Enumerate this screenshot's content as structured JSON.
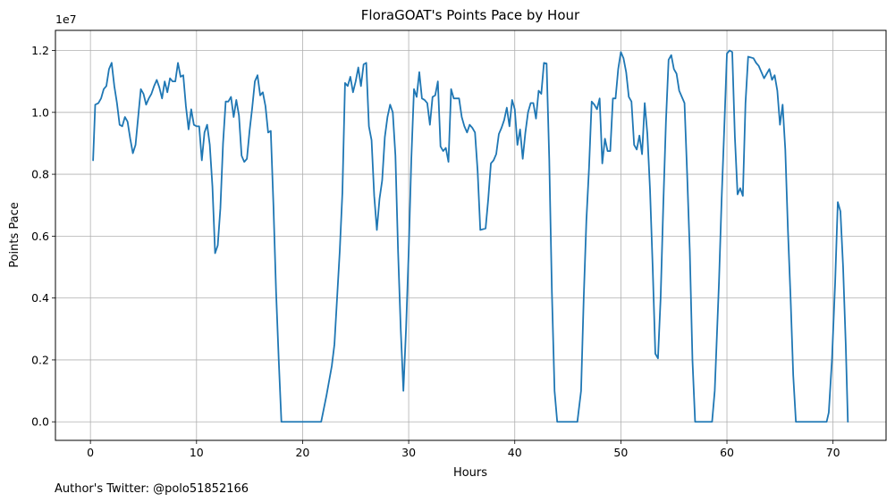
{
  "chart_data": {
    "type": "line",
    "title": "FloraGOAT's Points Pace by Hour",
    "xlabel": "Hours",
    "ylabel": "Points Pace",
    "offset_text": "1e7",
    "footer": "Author's Twitter: @polo51852166",
    "xlim": [
      -3.3,
      75.0
    ],
    "ylim": [
      -0.06,
      1.265
    ],
    "x_ticks": [
      0,
      10,
      20,
      30,
      40,
      50,
      60,
      70
    ],
    "y_ticks": [
      0.0,
      0.2,
      0.4,
      0.6,
      0.8,
      1.0,
      1.2
    ],
    "x_tick_labels": [
      "0",
      "10",
      "20",
      "30",
      "40",
      "50",
      "60",
      "70"
    ],
    "y_tick_labels": [
      "0.0",
      "0.2",
      "0.4",
      "0.6",
      "0.8",
      "1.0",
      "1.2"
    ],
    "grid": true,
    "series_color": "#1f77b4",
    "series": [
      {
        "points": [
          [
            0.25,
            0.845
          ],
          [
            0.45,
            1.025
          ],
          [
            0.75,
            1.03
          ],
          [
            1.0,
            1.045
          ],
          [
            1.25,
            1.075
          ],
          [
            1.5,
            1.085
          ],
          [
            1.75,
            1.14
          ],
          [
            2.0,
            1.16
          ],
          [
            2.25,
            1.085
          ],
          [
            2.5,
            1.03
          ],
          [
            2.75,
            0.96
          ],
          [
            3.0,
            0.955
          ],
          [
            3.25,
            0.985
          ],
          [
            3.5,
            0.97
          ],
          [
            3.75,
            0.915
          ],
          [
            4.0,
            0.868
          ],
          [
            4.25,
            0.895
          ],
          [
            4.5,
            0.985
          ],
          [
            4.75,
            1.075
          ],
          [
            5.0,
            1.06
          ],
          [
            5.25,
            1.025
          ],
          [
            5.5,
            1.045
          ],
          [
            5.75,
            1.06
          ],
          [
            6.0,
            1.085
          ],
          [
            6.25,
            1.105
          ],
          [
            6.5,
            1.08
          ],
          [
            6.75,
            1.045
          ],
          [
            7.0,
            1.1
          ],
          [
            7.25,
            1.065
          ],
          [
            7.5,
            1.11
          ],
          [
            7.75,
            1.1
          ],
          [
            8.0,
            1.1
          ],
          [
            8.25,
            1.16
          ],
          [
            8.5,
            1.115
          ],
          [
            8.75,
            1.12
          ],
          [
            9.0,
            1.02
          ],
          [
            9.25,
            0.945
          ],
          [
            9.5,
            1.01
          ],
          [
            9.75,
            0.96
          ],
          [
            10.0,
            0.955
          ],
          [
            10.25,
            0.955
          ],
          [
            10.5,
            0.845
          ],
          [
            10.75,
            0.935
          ],
          [
            11.0,
            0.96
          ],
          [
            11.25,
            0.895
          ],
          [
            11.5,
            0.76
          ],
          [
            11.75,
            0.545
          ],
          [
            12.0,
            0.57
          ],
          [
            12.25,
            0.69
          ],
          [
            12.5,
            0.9
          ],
          [
            12.75,
            1.035
          ],
          [
            13.0,
            1.035
          ],
          [
            13.25,
            1.05
          ],
          [
            13.5,
            0.985
          ],
          [
            13.75,
            1.04
          ],
          [
            14.0,
            0.99
          ],
          [
            14.25,
            0.86
          ],
          [
            14.5,
            0.84
          ],
          [
            14.75,
            0.85
          ],
          [
            15.0,
            0.94
          ],
          [
            15.25,
            1.015
          ],
          [
            15.5,
            1.1
          ],
          [
            15.75,
            1.12
          ],
          [
            16.0,
            1.055
          ],
          [
            16.25,
            1.065
          ],
          [
            16.5,
            1.02
          ],
          [
            16.75,
            0.935
          ],
          [
            17.0,
            0.94
          ],
          [
            17.25,
            0.7
          ],
          [
            17.5,
            0.42
          ],
          [
            17.75,
            0.2
          ],
          [
            18.0,
            0.0
          ],
          [
            19.0,
            0.0
          ],
          [
            20.0,
            0.0
          ],
          [
            21.0,
            0.0
          ],
          [
            21.75,
            0.0
          ],
          [
            22.25,
            0.085
          ],
          [
            22.75,
            0.18
          ],
          [
            23.0,
            0.25
          ],
          [
            23.5,
            0.55
          ],
          [
            23.75,
            0.74
          ],
          [
            24.0,
            1.095
          ],
          [
            24.25,
            1.085
          ],
          [
            24.5,
            1.115
          ],
          [
            24.75,
            1.065
          ],
          [
            25.0,
            1.1
          ],
          [
            25.25,
            1.145
          ],
          [
            25.5,
            1.085
          ],
          [
            25.75,
            1.155
          ],
          [
            26.0,
            1.16
          ],
          [
            26.25,
            0.955
          ],
          [
            26.5,
            0.91
          ],
          [
            26.75,
            0.73
          ],
          [
            27.0,
            0.62
          ],
          [
            27.25,
            0.72
          ],
          [
            27.5,
            0.78
          ],
          [
            27.75,
            0.92
          ],
          [
            28.0,
            0.985
          ],
          [
            28.25,
            1.025
          ],
          [
            28.5,
            1.0
          ],
          [
            28.75,
            0.86
          ],
          [
            29.0,
            0.55
          ],
          [
            29.25,
            0.3
          ],
          [
            29.5,
            0.1
          ],
          [
            29.75,
            0.3
          ],
          [
            30.0,
            0.55
          ],
          [
            30.25,
            0.85
          ],
          [
            30.5,
            1.075
          ],
          [
            30.75,
            1.05
          ],
          [
            31.0,
            1.13
          ],
          [
            31.25,
            1.045
          ],
          [
            31.5,
            1.04
          ],
          [
            31.75,
            1.03
          ],
          [
            32.0,
            0.96
          ],
          [
            32.25,
            1.05
          ],
          [
            32.5,
            1.055
          ],
          [
            32.75,
            1.1
          ],
          [
            33.0,
            0.89
          ],
          [
            33.25,
            0.875
          ],
          [
            33.5,
            0.885
          ],
          [
            33.75,
            0.84
          ],
          [
            34.0,
            1.075
          ],
          [
            34.25,
            1.045
          ],
          [
            34.5,
            1.045
          ],
          [
            34.75,
            1.045
          ],
          [
            35.0,
            0.985
          ],
          [
            35.25,
            0.955
          ],
          [
            35.5,
            0.935
          ],
          [
            35.75,
            0.96
          ],
          [
            36.0,
            0.95
          ],
          [
            36.25,
            0.935
          ],
          [
            36.5,
            0.81
          ],
          [
            36.75,
            0.62
          ],
          [
            37.25,
            0.625
          ],
          [
            37.5,
            0.72
          ],
          [
            37.75,
            0.835
          ],
          [
            38.0,
            0.845
          ],
          [
            38.25,
            0.865
          ],
          [
            38.5,
            0.93
          ],
          [
            38.75,
            0.95
          ],
          [
            39.0,
            0.975
          ],
          [
            39.25,
            1.015
          ],
          [
            39.5,
            0.955
          ],
          [
            39.75,
            1.04
          ],
          [
            40.0,
            1.01
          ],
          [
            40.25,
            0.895
          ],
          [
            40.5,
            0.945
          ],
          [
            40.75,
            0.85
          ],
          [
            41.0,
            0.935
          ],
          [
            41.25,
            1.0
          ],
          [
            41.5,
            1.03
          ],
          [
            41.75,
            1.03
          ],
          [
            42.0,
            0.98
          ],
          [
            42.25,
            1.07
          ],
          [
            42.5,
            1.06
          ],
          [
            42.75,
            1.16
          ],
          [
            43.0,
            1.158
          ],
          [
            43.25,
            0.85
          ],
          [
            43.5,
            0.42
          ],
          [
            43.75,
            0.1
          ],
          [
            44.0,
            0.0
          ],
          [
            45.0,
            0.0
          ],
          [
            45.9,
            0.0
          ],
          [
            46.25,
            0.1
          ],
          [
            46.5,
            0.4
          ],
          [
            46.75,
            0.65
          ],
          [
            47.0,
            0.82
          ],
          [
            47.25,
            1.035
          ],
          [
            47.5,
            1.025
          ],
          [
            47.75,
            1.01
          ],
          [
            48.0,
            1.045
          ],
          [
            48.25,
            0.835
          ],
          [
            48.5,
            0.915
          ],
          [
            48.75,
            0.875
          ],
          [
            49.0,
            0.875
          ],
          [
            49.25,
            1.045
          ],
          [
            49.5,
            1.045
          ],
          [
            49.75,
            1.14
          ],
          [
            50.0,
            1.195
          ],
          [
            50.25,
            1.175
          ],
          [
            50.5,
            1.13
          ],
          [
            50.75,
            1.05
          ],
          [
            51.0,
            1.035
          ],
          [
            51.25,
            0.895
          ],
          [
            51.5,
            0.88
          ],
          [
            51.75,
            0.925
          ],
          [
            52.0,
            0.865
          ],
          [
            52.25,
            1.03
          ],
          [
            52.5,
            0.93
          ],
          [
            52.75,
            0.75
          ],
          [
            53.0,
            0.5
          ],
          [
            53.25,
            0.22
          ],
          [
            53.5,
            0.205
          ],
          [
            53.75,
            0.4
          ],
          [
            54.0,
            0.7
          ],
          [
            54.25,
            0.97
          ],
          [
            54.5,
            1.17
          ],
          [
            54.75,
            1.185
          ],
          [
            55.0,
            1.14
          ],
          [
            55.25,
            1.125
          ],
          [
            55.5,
            1.07
          ],
          [
            55.75,
            1.05
          ],
          [
            56.0,
            1.03
          ],
          [
            56.25,
            0.8
          ],
          [
            56.5,
            0.55
          ],
          [
            56.75,
            0.2
          ],
          [
            57.0,
            0.0
          ],
          [
            58.0,
            0.0
          ],
          [
            58.6,
            0.0
          ],
          [
            58.85,
            0.1
          ],
          [
            59.25,
            0.45
          ],
          [
            59.5,
            0.72
          ],
          [
            59.75,
            0.95
          ],
          [
            60.0,
            1.19
          ],
          [
            60.25,
            1.2
          ],
          [
            60.5,
            1.195
          ],
          [
            60.75,
            0.92
          ],
          [
            61.0,
            0.735
          ],
          [
            61.25,
            0.755
          ],
          [
            61.5,
            0.73
          ],
          [
            61.75,
            1.03
          ],
          [
            62.0,
            1.18
          ],
          [
            62.5,
            1.175
          ],
          [
            62.75,
            1.16
          ],
          [
            63.0,
            1.15
          ],
          [
            63.25,
            1.13
          ],
          [
            63.5,
            1.11
          ],
          [
            63.75,
            1.125
          ],
          [
            64.0,
            1.14
          ],
          [
            64.25,
            1.105
          ],
          [
            64.5,
            1.12
          ],
          [
            64.75,
            1.07
          ],
          [
            65.0,
            0.96
          ],
          [
            65.25,
            1.025
          ],
          [
            65.5,
            0.88
          ],
          [
            65.75,
            0.62
          ],
          [
            66.0,
            0.4
          ],
          [
            66.25,
            0.15
          ],
          [
            66.5,
            0.0
          ],
          [
            67.5,
            0.0
          ],
          [
            68.5,
            0.0
          ],
          [
            69.4,
            0.0
          ],
          [
            69.6,
            0.03
          ],
          [
            69.9,
            0.2
          ],
          [
            70.2,
            0.45
          ],
          [
            70.45,
            0.71
          ],
          [
            70.7,
            0.68
          ],
          [
            70.95,
            0.5
          ],
          [
            71.2,
            0.25
          ],
          [
            71.4,
            0.0
          ]
        ]
      }
    ]
  }
}
